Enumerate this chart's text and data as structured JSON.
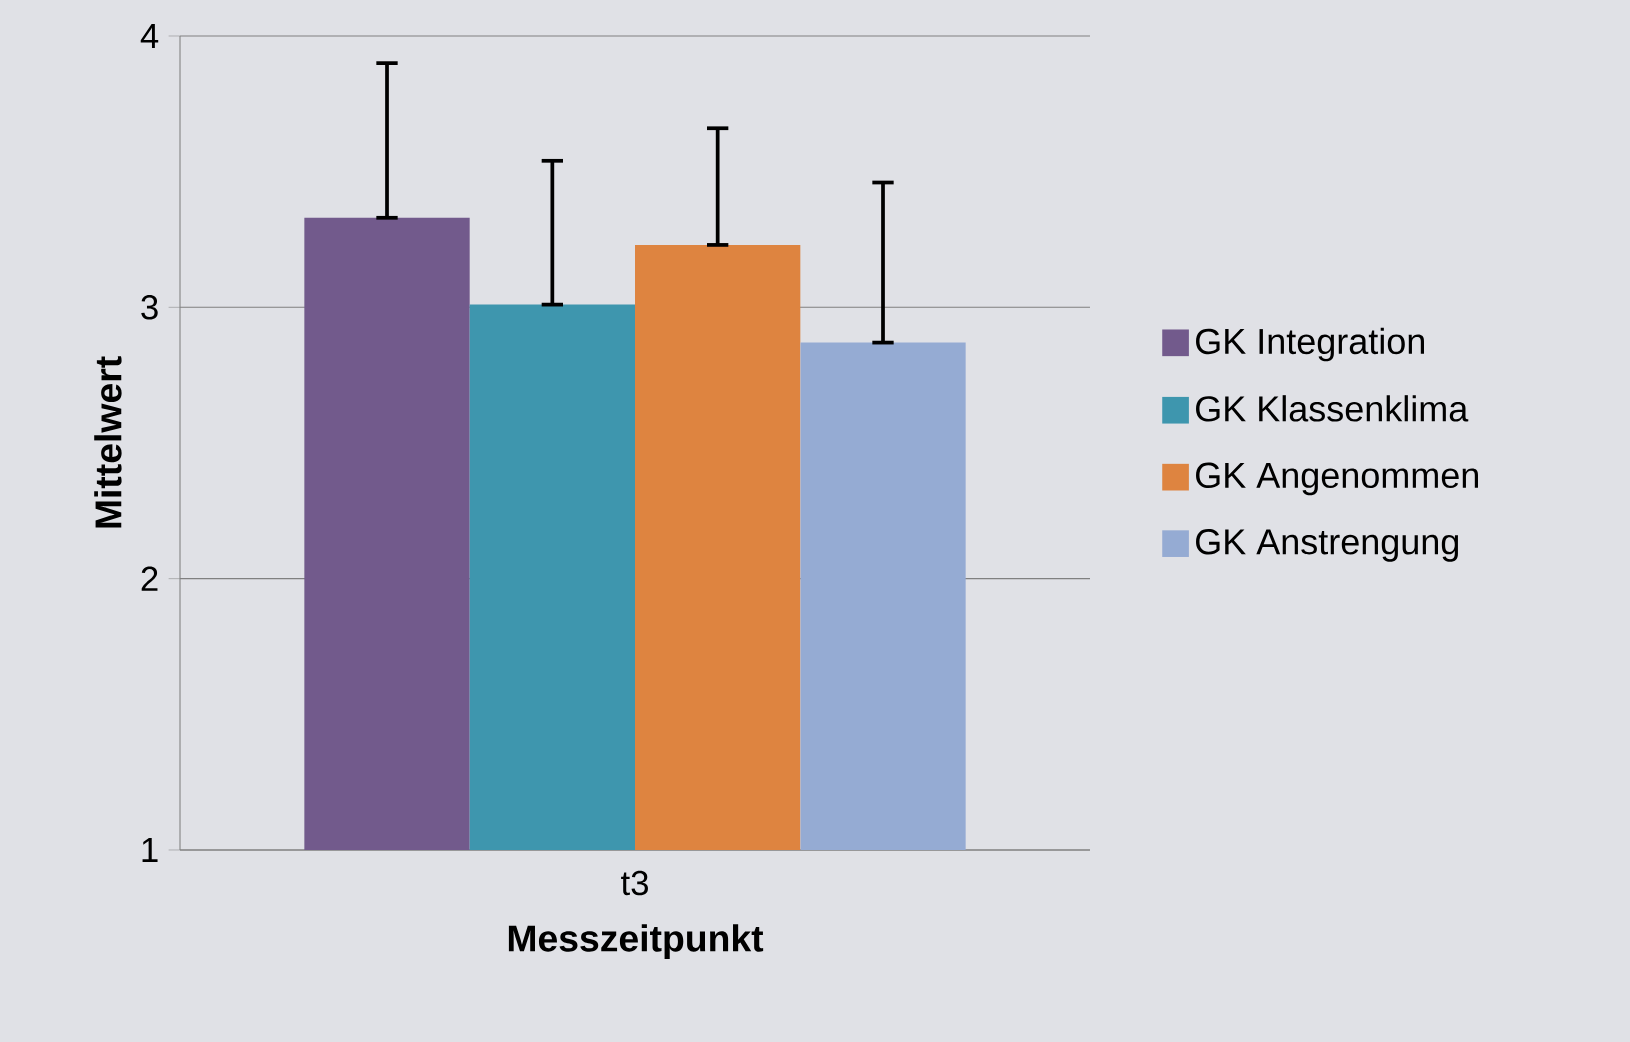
{
  "chart_data": {
    "type": "bar",
    "xlabel": "Messzeitpunkt",
    "ylabel": "Mittelwert",
    "categories": [
      "t3"
    ],
    "series": [
      {
        "name": "GK Integration",
        "color": "#725a8c",
        "values": [
          3.33
        ],
        "errors": [
          [
            3.33,
            3.9
          ]
        ]
      },
      {
        "name": "GK Klassenklima",
        "color": "#3e96ae",
        "values": [
          3.01
        ],
        "errors": [
          [
            3.01,
            3.54
          ]
        ]
      },
      {
        "name": "GK Angenommen",
        "color": "#de8440",
        "values": [
          3.23
        ],
        "errors": [
          [
            3.23,
            3.66
          ]
        ]
      },
      {
        "name": "GK Anstrengung",
        "color": "#95abd3",
        "values": [
          2.87
        ],
        "errors": [
          [
            2.87,
            3.46
          ]
        ]
      }
    ],
    "ylim": [
      1,
      4
    ],
    "yticks": [
      1,
      2,
      3,
      4
    ],
    "grid": "y",
    "legend": "right"
  }
}
